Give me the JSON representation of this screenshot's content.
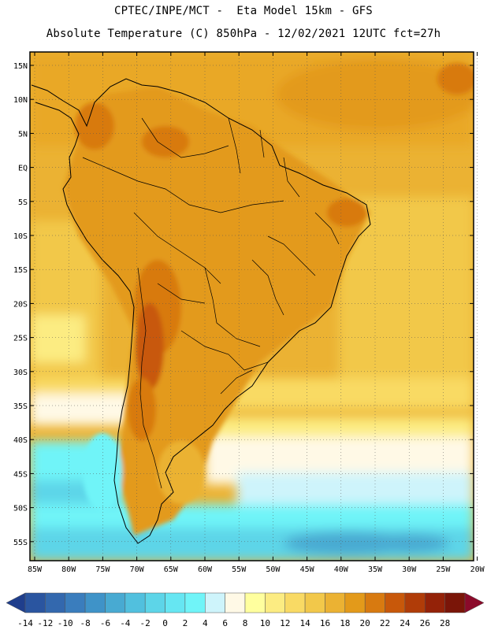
{
  "header": {
    "line1": "CPTEC/INPE/MCT -  Eta Model 15km - GFS",
    "line2": "Absolute Temperature (C) 850hPa - 12/02/2021 12UTC fct=27h"
  },
  "map": {
    "region": "South America",
    "lat_labels": [
      "15N",
      "10N",
      "5N",
      "EQ",
      "5S",
      "10S",
      "15S",
      "20S",
      "25S",
      "30S",
      "35S",
      "40S",
      "45S",
      "50S",
      "55S"
    ],
    "lon_labels": [
      "85W",
      "80W",
      "75W",
      "70W",
      "65W",
      "60W",
      "55W",
      "50W",
      "45W",
      "40W",
      "35W",
      "30W",
      "25W",
      "20W"
    ]
  },
  "colorbar": {
    "ticks": [
      "-14",
      "-12",
      "-10",
      "-8",
      "-6",
      "-4",
      "-2",
      "0",
      "2",
      "4",
      "6",
      "8",
      "10",
      "12",
      "14",
      "16",
      "18",
      "20",
      "22",
      "24",
      "26",
      "28"
    ],
    "colors": [
      "#1f3e8c",
      "#2a55a0",
      "#3368ae",
      "#3a7dbd",
      "#3f93c8",
      "#48aad2",
      "#51c0de",
      "#5dd5e8",
      "#66e6f2",
      "#70f4f8",
      "#cef4fb",
      "#fff9e6",
      "#ffff9e",
      "#fcec82",
      "#f9da64",
      "#f2c84a",
      "#ebb233",
      "#e39a1a",
      "#d87a10",
      "#c8580a",
      "#b03c08",
      "#942208",
      "#7a1508",
      "#8b0a2a"
    ]
  }
}
